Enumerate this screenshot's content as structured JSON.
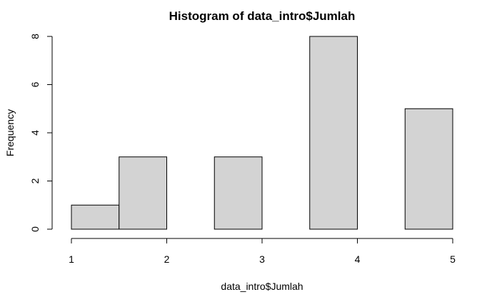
{
  "chart_data": {
    "type": "bar",
    "title": "Histogram of data_intro$Jumlah",
    "xlabel": "data_intro$Jumlah",
    "ylabel": "Frequency",
    "xlim": [
      1,
      5
    ],
    "ylim": [
      0,
      8
    ],
    "x_ticks": [
      "1",
      "2",
      "3",
      "4",
      "5"
    ],
    "y_ticks": [
      "0",
      "2",
      "4",
      "6",
      "8"
    ],
    "bins": [
      {
        "from": 1.0,
        "to": 1.5,
        "count": 1
      },
      {
        "from": 1.5,
        "to": 2.0,
        "count": 3
      },
      {
        "from": 2.0,
        "to": 2.5,
        "count": 0
      },
      {
        "from": 2.5,
        "to": 3.0,
        "count": 3
      },
      {
        "from": 3.0,
        "to": 3.5,
        "count": 0
      },
      {
        "from": 3.5,
        "to": 4.0,
        "count": 8
      },
      {
        "from": 4.0,
        "to": 4.5,
        "count": 0
      },
      {
        "from": 4.5,
        "to": 5.0,
        "count": 5
      }
    ],
    "bar_color": "#d3d3d3",
    "grid": false
  }
}
